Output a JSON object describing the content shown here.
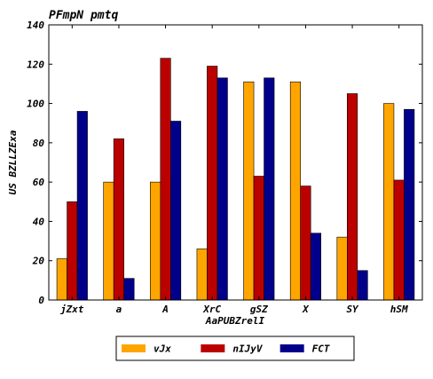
{
  "chart_data": {
    "type": "bar",
    "title": "PFmpN pmtq",
    "xlabel": "AaPUBZrelI",
    "ylabel": "US BZLLZExa",
    "ylim": [
      0,
      140
    ],
    "yticks": [
      0,
      20,
      40,
      60,
      80,
      100,
      120,
      140
    ],
    "categories": [
      "jZxt",
      "a",
      "A",
      "XrC",
      "gSZ",
      "X",
      "SY",
      "hSM"
    ],
    "series": [
      {
        "name": "vJx",
        "color": "#FFA500",
        "values": [
          21,
          60,
          60,
          26,
          111,
          111,
          32,
          100
        ]
      },
      {
        "name": "nIJyV",
        "color": "#BB0000",
        "values": [
          50,
          82,
          123,
          119,
          63,
          58,
          105,
          61
        ]
      },
      {
        "name": "FCT",
        "color": "#00008B",
        "values": [
          96,
          11,
          91,
          113,
          113,
          34,
          15,
          97
        ]
      }
    ],
    "grid": false,
    "legend_position": "bottom"
  }
}
